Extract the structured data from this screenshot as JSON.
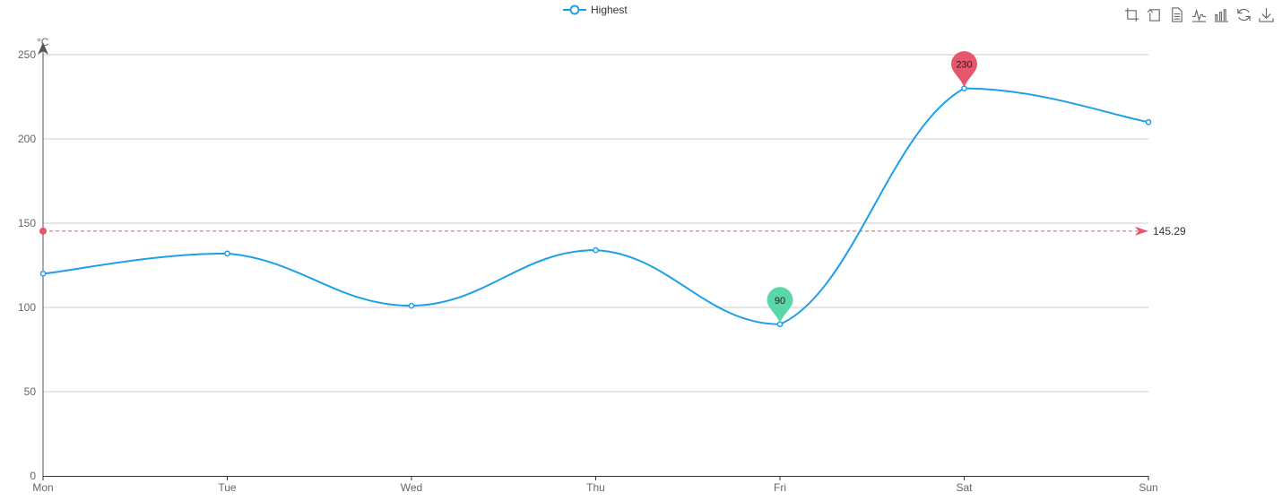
{
  "legend": {
    "label": "Highest",
    "color": "#1e9fe8"
  },
  "toolbox": [
    {
      "icon": "crop-zoom-icon"
    },
    {
      "icon": "zoom-reset-icon"
    },
    {
      "icon": "data-view-icon"
    },
    {
      "icon": "line-chart-icon"
    },
    {
      "icon": "bar-chart-icon"
    },
    {
      "icon": "restore-icon"
    },
    {
      "icon": "save-image-icon"
    }
  ],
  "chart_data": {
    "type": "line",
    "categories": [
      "Mon",
      "Tue",
      "Wed",
      "Thu",
      "Fri",
      "Sat",
      "Sun"
    ],
    "series": [
      {
        "name": "Highest",
        "values": [
          120,
          132,
          101,
          134,
          90,
          230,
          210
        ],
        "color": "#1e9fe8",
        "smooth": true
      }
    ],
    "ylabel": "°C",
    "ylim": [
      0,
      250
    ],
    "yticks": [
      0,
      50,
      100,
      150,
      200,
      250
    ],
    "grid": true,
    "mark_points": [
      {
        "label": "230",
        "category": "Sat",
        "value": 230,
        "color": "#e8566d"
      },
      {
        "label": "90",
        "category": "Fri",
        "value": 90,
        "color": "#5bd6a8"
      }
    ],
    "mark_line": {
      "label": "145.29",
      "value": 145.29,
      "color": "#e8566d"
    }
  }
}
